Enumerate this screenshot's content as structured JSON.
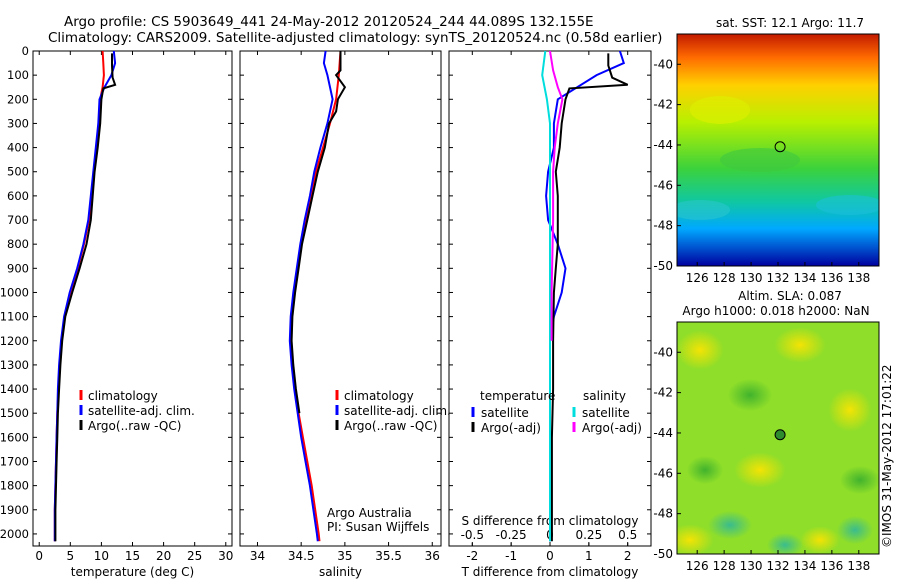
{
  "header": {
    "line1": "Argo profile: CS 5903649_441 24-May-2012 20120524_244 44.089S 132.155E",
    "line2": "Climatology: CARS2009. Satellite-adjusted climatology: synTS_20120524.nc (0.58d earlier)"
  },
  "side_stamp": "©IMOS 31-May-2012 17:01:22",
  "chart_data": [
    {
      "type": "line",
      "name": "temperature-profile",
      "xlabel": "temperature (deg C)",
      "ylabel": "",
      "xlim": [
        -1,
        31
      ],
      "ylim": [
        2050,
        0
      ],
      "xticks": [
        "0",
        "5",
        "10",
        "15",
        "20",
        "25",
        "30"
      ],
      "yticks": [
        "0",
        "100",
        "200",
        "300",
        "400",
        "500",
        "600",
        "700",
        "800",
        "900",
        "1000",
        "1100",
        "1200",
        "1300",
        "1400",
        "1500",
        "1600",
        "1700",
        "1800",
        "1900",
        "2000"
      ],
      "legend": [
        "climatology",
        "satellite-adj. clim.",
        "Argo(..raw -QC)"
      ],
      "series": [
        {
          "name": "climatology",
          "color": "#ff0000",
          "points": [
            [
              10.2,
              0
            ],
            [
              10.3,
              50
            ],
            [
              10.4,
              100
            ],
            [
              10.2,
              150
            ],
            [
              9.8,
              200
            ],
            [
              9.6,
              300
            ],
            [
              9.2,
              400
            ],
            [
              8.8,
              500
            ],
            [
              8.4,
              600
            ],
            [
              8.0,
              700
            ],
            [
              7.2,
              800
            ],
            [
              6.2,
              900
            ],
            [
              5.0,
              1000
            ],
            [
              4.1,
              1100
            ],
            [
              3.6,
              1200
            ],
            [
              3.3,
              1300
            ],
            [
              3.1,
              1400
            ],
            [
              2.9,
              1500
            ],
            [
              2.8,
              1600
            ],
            [
              2.7,
              1700
            ],
            [
              2.6,
              1800
            ],
            [
              2.5,
              1900
            ],
            [
              2.5,
              2000
            ],
            [
              2.5,
              2030
            ]
          ]
        },
        {
          "name": "satellite-adj. clim.",
          "color": "#0000ff",
          "points": [
            [
              12.0,
              0
            ],
            [
              12.2,
              50
            ],
            [
              11.6,
              100
            ],
            [
              10.5,
              150
            ],
            [
              9.7,
              200
            ],
            [
              9.5,
              300
            ],
            [
              9.1,
              400
            ],
            [
              8.7,
              500
            ],
            [
              8.3,
              600
            ],
            [
              7.9,
              700
            ],
            [
              7.1,
              800
            ],
            [
              6.1,
              900
            ],
            [
              4.9,
              1000
            ],
            [
              4.0,
              1100
            ],
            [
              3.5,
              1200
            ],
            [
              3.2,
              1300
            ],
            [
              3.0,
              1400
            ],
            [
              2.9,
              1500
            ],
            [
              2.8,
              1600
            ],
            [
              2.7,
              1700
            ],
            [
              2.6,
              1800
            ],
            [
              2.5,
              1900
            ],
            [
              2.5,
              2000
            ],
            [
              2.5,
              2030
            ]
          ]
        },
        {
          "name": "Argo(..raw -QC)",
          "color": "#000000",
          "points": [
            [
              11.7,
              10
            ],
            [
              11.7,
              60
            ],
            [
              11.8,
              110
            ],
            [
              12.2,
              140
            ],
            [
              10.3,
              155
            ],
            [
              10.0,
              200
            ],
            [
              9.8,
              300
            ],
            [
              9.4,
              400
            ],
            [
              8.9,
              500
            ],
            [
              8.6,
              600
            ],
            [
              8.3,
              700
            ],
            [
              7.6,
              800
            ],
            [
              6.5,
              900
            ],
            [
              5.3,
              1000
            ],
            [
              4.2,
              1100
            ],
            [
              3.7,
              1200
            ],
            [
              3.4,
              1300
            ],
            [
              3.2,
              1400
            ],
            [
              3.0,
              1500
            ],
            [
              2.9,
              1600
            ],
            [
              2.8,
              1700
            ],
            [
              2.7,
              1800
            ],
            [
              2.6,
              1900
            ],
            [
              2.6,
              2000
            ],
            [
              2.6,
              2030
            ]
          ]
        }
      ]
    },
    {
      "type": "line",
      "name": "salinity-profile",
      "xlabel": "salinity",
      "xlim": [
        33.8,
        36.1
      ],
      "ylim": [
        2050,
        0
      ],
      "xticks": [
        "34",
        "34.5",
        "35",
        "35.5",
        "36"
      ],
      "legend": [
        "climatology",
        "satellite-adj. clim.",
        "Argo(..raw -QC)"
      ],
      "annotation": [
        "Argo Australia",
        "PI: Susan Wijffels"
      ],
      "series": [
        {
          "name": "climatology",
          "color": "#ff0000",
          "points": [
            [
              34.95,
              0
            ],
            [
              34.93,
              100
            ],
            [
              34.9,
              200
            ],
            [
              34.83,
              300
            ],
            [
              34.75,
              400
            ],
            [
              34.67,
              500
            ],
            [
              34.62,
              600
            ],
            [
              34.56,
              700
            ],
            [
              34.5,
              800
            ],
            [
              34.46,
              900
            ],
            [
              34.42,
              1000
            ],
            [
              34.39,
              1100
            ],
            [
              34.38,
              1200
            ],
            [
              34.4,
              1300
            ],
            [
              34.43,
              1400
            ],
            [
              34.47,
              1500
            ],
            [
              34.52,
              1600
            ],
            [
              34.57,
              1700
            ],
            [
              34.62,
              1800
            ],
            [
              34.66,
              1900
            ],
            [
              34.7,
              2000
            ],
            [
              34.71,
              2030
            ]
          ]
        },
        {
          "name": "satellite-adj. clim.",
          "color": "#0000ff",
          "points": [
            [
              34.78,
              0
            ],
            [
              34.76,
              50
            ],
            [
              34.8,
              100
            ],
            [
              34.86,
              200
            ],
            [
              34.8,
              300
            ],
            [
              34.72,
              400
            ],
            [
              34.65,
              500
            ],
            [
              34.6,
              600
            ],
            [
              34.54,
              700
            ],
            [
              34.49,
              800
            ],
            [
              34.45,
              900
            ],
            [
              34.41,
              1000
            ],
            [
              34.38,
              1100
            ],
            [
              34.37,
              1200
            ],
            [
              34.39,
              1300
            ],
            [
              34.42,
              1400
            ],
            [
              34.46,
              1500
            ],
            [
              34.5,
              1600
            ],
            [
              34.55,
              1700
            ],
            [
              34.6,
              1800
            ],
            [
              34.64,
              1900
            ],
            [
              34.68,
              2000
            ],
            [
              34.69,
              2030
            ]
          ]
        },
        {
          "name": "Argo(..raw -QC)",
          "color": "#000000",
          "points": [
            [
              34.95,
              0
            ],
            [
              34.95,
              80
            ],
            [
              34.9,
              100
            ],
            [
              35.0,
              150
            ],
            [
              34.92,
              200
            ],
            [
              34.9,
              250
            ],
            [
              34.82,
              300
            ],
            [
              34.77,
              400
            ],
            [
              34.69,
              500
            ],
            [
              34.63,
              600
            ],
            [
              34.57,
              700
            ],
            [
              34.51,
              800
            ],
            [
              34.47,
              900
            ],
            [
              34.43,
              1000
            ],
            [
              34.4,
              1100
            ],
            [
              34.39,
              1200
            ],
            [
              34.41,
              1300
            ],
            [
              34.44,
              1400
            ],
            [
              34.48,
              1500
            ]
          ]
        }
      ]
    },
    {
      "type": "line",
      "name": "difference-profile",
      "xlabel": "T difference from climatology",
      "xlabel_top": "S difference from climatology",
      "xlim": [
        -2.6,
        2.6
      ],
      "ylim": [
        2050,
        0
      ],
      "xticks_bottom": [
        "-2",
        "-1",
        "0",
        "1",
        "2"
      ],
      "xticks_top": [
        "-0.5",
        "-0.25",
        "0",
        "0.25",
        "0.5"
      ],
      "legend_temperature_title": "temperature",
      "legend_salinity_title": "salinity",
      "legend": [
        "satellite",
        "Argo(-adj)",
        "satellite",
        "Argo(-adj)"
      ],
      "series": [
        {
          "name": "T satellite",
          "color": "#0000ff",
          "points": [
            [
              1.8,
              0
            ],
            [
              1.9,
              50
            ],
            [
              1.2,
              100
            ],
            [
              0.2,
              200
            ],
            [
              0.1,
              300
            ],
            [
              0.1,
              400
            ],
            [
              -0.05,
              500
            ],
            [
              -0.1,
              600
            ],
            [
              -0.05,
              700
            ],
            [
              0.2,
              800
            ],
            [
              0.4,
              900
            ],
            [
              0.3,
              1000
            ],
            [
              0.1,
              1100
            ],
            [
              0.0,
              1200
            ],
            [
              0,
              1400
            ],
            [
              0,
              2030
            ]
          ]
        },
        {
          "name": "T Argo(-adj)",
          "color": "#000000",
          "points": [
            [
              1.5,
              10
            ],
            [
              1.5,
              60
            ],
            [
              1.6,
              110
            ],
            [
              2.0,
              140
            ],
            [
              0.5,
              155
            ],
            [
              0.4,
              200
            ],
            [
              0.3,
              300
            ],
            [
              0.25,
              400
            ],
            [
              0.15,
              500
            ],
            [
              0.2,
              600
            ],
            [
              0.2,
              700
            ],
            [
              0.2,
              800
            ],
            [
              0.15,
              900
            ],
            [
              0.1,
              1000
            ],
            [
              0.08,
              1200
            ],
            [
              0.08,
              1400
            ],
            [
              0.05,
              1600
            ],
            [
              0.05,
              2030
            ]
          ]
        },
        {
          "name": "S satellite",
          "color": "#00dddd",
          "points": [
            [
              -0.03,
              0
            ],
            [
              -0.05,
              100
            ],
            [
              -0.02,
              200
            ],
            [
              0.0,
              300
            ],
            [
              0.0,
              500
            ],
            [
              0.0,
              1000
            ],
            [
              0.0,
              1500
            ],
            [
              0.0,
              2030
            ]
          ]
        },
        {
          "name": "S Argo(-adj)",
          "color": "#ff00ff",
          "points": [
            [
              0.0,
              0
            ],
            [
              0.02,
              80
            ],
            [
              0.05,
              150
            ],
            [
              0.08,
              200
            ],
            [
              0.05,
              300
            ],
            [
              0.03,
              400
            ],
            [
              0.02,
              500
            ],
            [
              0.02,
              700
            ],
            [
              0.01,
              1000
            ],
            [
              0.01,
              1200
            ]
          ]
        }
      ]
    },
    {
      "type": "heatmap",
      "name": "sst-map",
      "title": "sat. SST: 12.1  Argo: 11.7",
      "xticks": [
        "126",
        "128",
        "130",
        "132",
        "134",
        "136",
        "138"
      ],
      "yticks": [
        "-40",
        "-42",
        "-44",
        "-46",
        "-48",
        "-50"
      ],
      "xlim": [
        124.5,
        139.5
      ],
      "ylim": [
        -50,
        -38.5
      ],
      "marker": {
        "lon": 132.155,
        "lat": -44.089
      }
    },
    {
      "type": "heatmap",
      "name": "sla-map",
      "title": "Altim. SLA: 0.087",
      "subtitle": "Argo h1000: 0.018 h2000: NaN",
      "xticks": [
        "126",
        "128",
        "130",
        "132",
        "134",
        "136",
        "138"
      ],
      "yticks": [
        "-40",
        "-42",
        "-44",
        "-46",
        "-48",
        "-50"
      ],
      "xlim": [
        124.5,
        139.5
      ],
      "ylim": [
        -50,
        -38.5
      ],
      "marker": {
        "lon": 132.155,
        "lat": -44.089
      }
    }
  ]
}
